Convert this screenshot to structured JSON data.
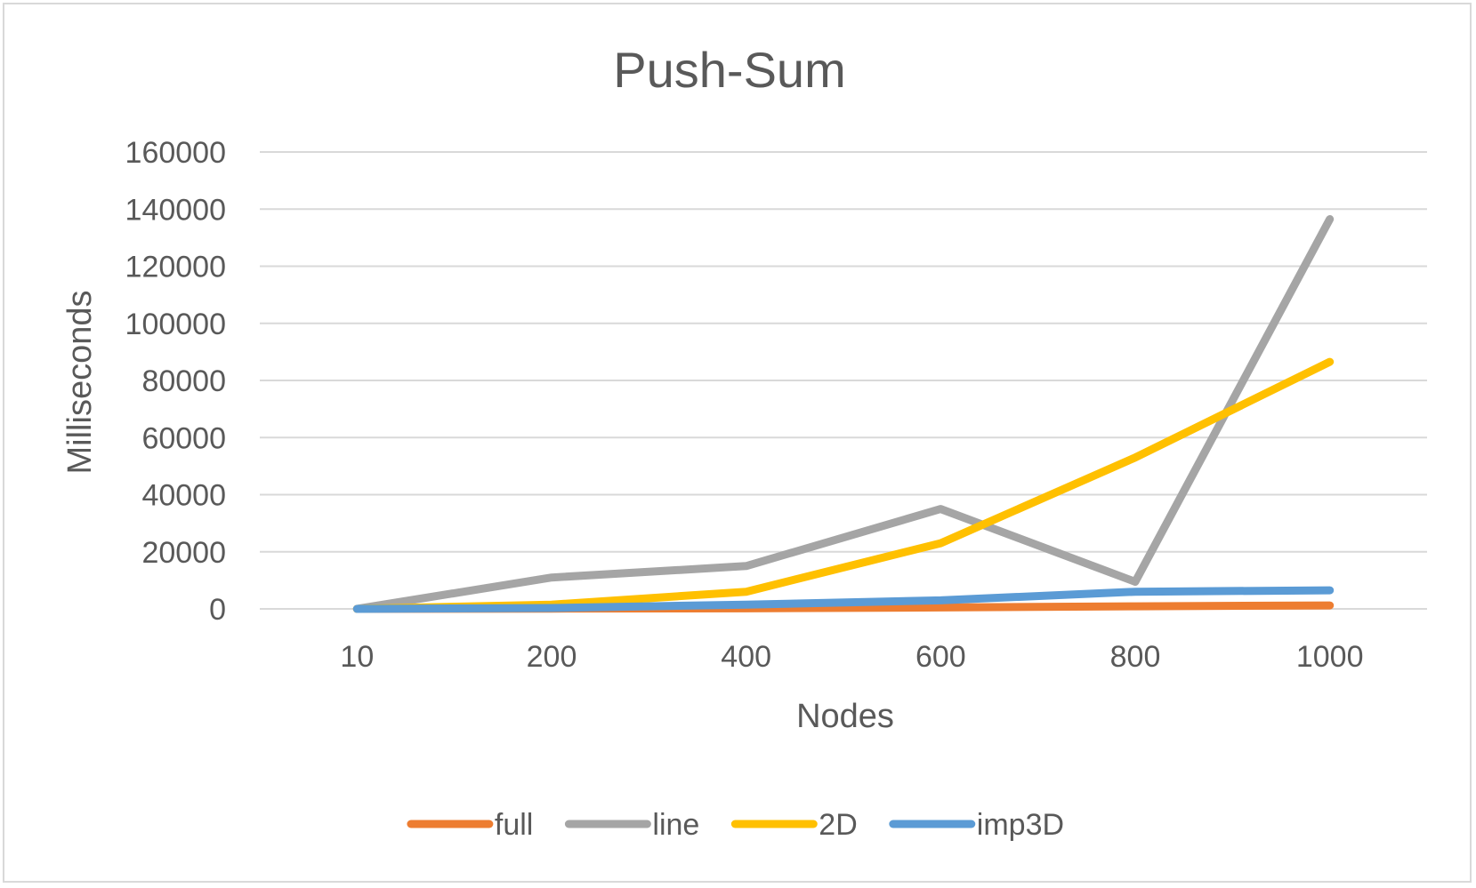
{
  "chart_data": {
    "type": "line",
    "title": "Push-Sum",
    "xlabel": "Nodes",
    "ylabel": "Milliseconds",
    "categories": [
      "10",
      "200",
      "400",
      "600",
      "800",
      "1000"
    ],
    "y_ticks": [
      "0",
      "20000",
      "40000",
      "60000",
      "80000",
      "100000",
      "120000",
      "140000",
      "160000"
    ],
    "ylim": [
      0,
      160000
    ],
    "grid": true,
    "legend_position": "bottom",
    "series": [
      {
        "name": "full",
        "color": "#ED7D31",
        "values": [
          0,
          100,
          200,
          500,
          900,
          1200
        ]
      },
      {
        "name": "line",
        "color": "#A5A5A5",
        "values": [
          0,
          11000,
          15000,
          35000,
          9500,
          136500
        ]
      },
      {
        "name": "2D",
        "color": "#FFC000",
        "values": [
          0,
          1500,
          6000,
          23000,
          53000,
          86500
        ]
      },
      {
        "name": "imp3D",
        "color": "#5B9BD5",
        "values": [
          0,
          300,
          1500,
          3000,
          6000,
          6500
        ]
      }
    ]
  }
}
